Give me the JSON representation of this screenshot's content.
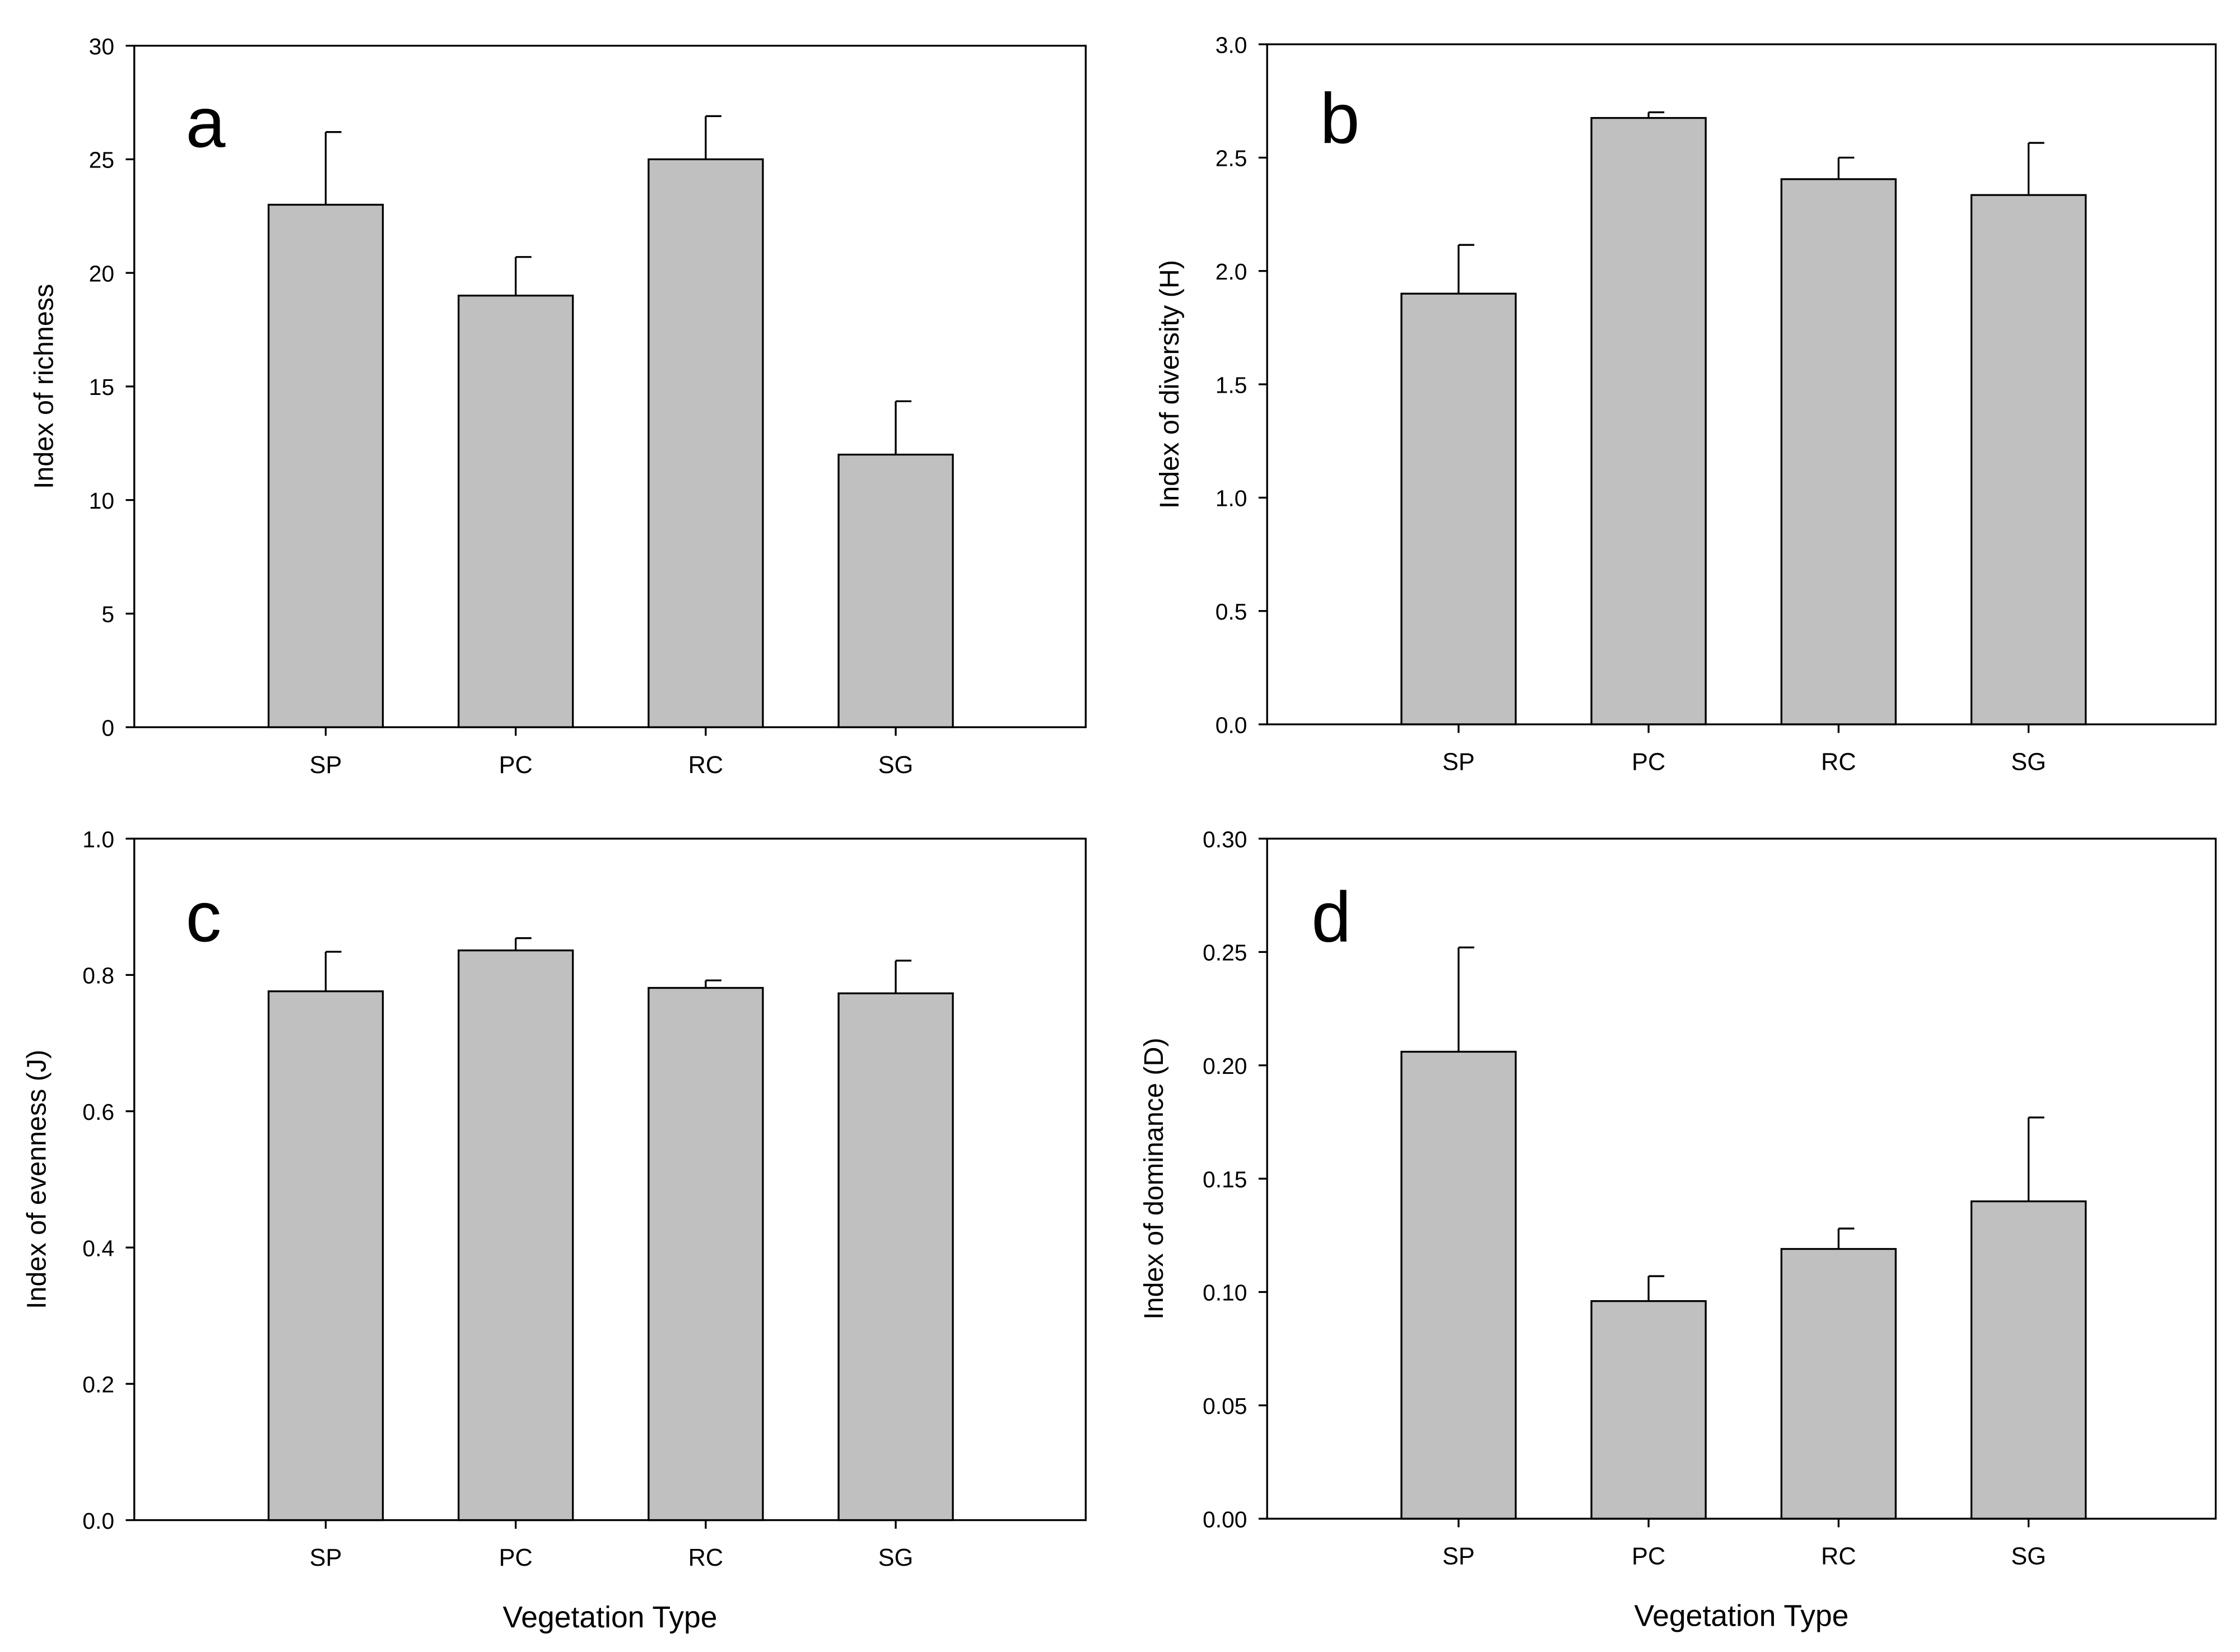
{
  "figure": {
    "categories": [
      "SP",
      "PC",
      "RC",
      "SG"
    ],
    "bar_color": "#c0c0c0",
    "xlabel": "Vegetation Type"
  },
  "chart_data": [
    {
      "id": "a",
      "panel_letter": "a",
      "type": "bar",
      "ylabel": "Index of richness",
      "xlabel": "",
      "ylim": [
        0,
        30
      ],
      "yticks": [
        "0",
        "5",
        "10",
        "15",
        "20",
        "25",
        "30"
      ],
      "categories": [
        "SP",
        "PC",
        "RC",
        "SG"
      ],
      "values": [
        23,
        19,
        25,
        12
      ],
      "errors": [
        3.2,
        1.7,
        1.9,
        2.35
      ]
    },
    {
      "id": "b",
      "panel_letter": "b",
      "type": "bar",
      "ylabel": "Index of diversity (H)",
      "xlabel": "",
      "ylim": [
        0,
        3.0
      ],
      "yticks": [
        "0.0",
        "0.5",
        "1.0",
        "1.5",
        "2.0",
        "2.5",
        "3.0"
      ],
      "categories": [
        "SP",
        "PC",
        "RC",
        "SG"
      ],
      "values": [
        1.9,
        2.675,
        2.405,
        2.335
      ],
      "errors": [
        0.215,
        0.025,
        0.095,
        0.23
      ]
    },
    {
      "id": "c",
      "panel_letter": "c",
      "type": "bar",
      "ylabel": "Index of evenness (J)",
      "xlabel": "Vegetation Type",
      "ylim": [
        0,
        1.0
      ],
      "yticks": [
        "0.0",
        "0.2",
        "0.4",
        "0.6",
        "0.8",
        "1.0"
      ],
      "categories": [
        "SP",
        "PC",
        "RC",
        "SG"
      ],
      "values": [
        0.776,
        0.836,
        0.781,
        0.773
      ],
      "errors": [
        0.058,
        0.018,
        0.011,
        0.048
      ]
    },
    {
      "id": "d",
      "panel_letter": "d",
      "type": "bar",
      "ylabel": "Index of dominance (D)",
      "xlabel": "Vegetation Type",
      "ylim": [
        0,
        0.3
      ],
      "yticks": [
        "0.00",
        "0.05",
        "0.10",
        "0.15",
        "0.20",
        "0.25",
        "0.30"
      ],
      "categories": [
        "SP",
        "PC",
        "RC",
        "SG"
      ],
      "values": [
        0.206,
        0.096,
        0.119,
        0.14
      ],
      "errors": [
        0.046,
        0.011,
        0.009,
        0.037
      ]
    }
  ]
}
